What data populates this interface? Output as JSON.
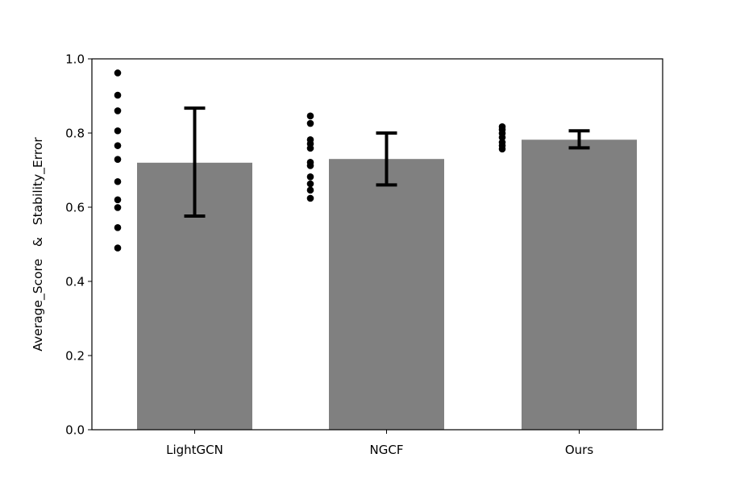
{
  "chart_data": {
    "type": "bar",
    "title": "",
    "xlabel": "",
    "ylabel": "Average_Score   &   Stability_Error",
    "ylim": [
      0,
      1.0
    ],
    "yticks": [
      0.0,
      0.2,
      0.4,
      0.6,
      0.8,
      1.0
    ],
    "ytick_labels": [
      "0.0",
      "0.2",
      "0.4",
      "0.6",
      "0.8",
      "1.0"
    ],
    "categories": [
      "LightGCN",
      "NGCF",
      "Ours"
    ],
    "values": [
      0.72,
      0.73,
      0.782
    ],
    "error_low": [
      0.576,
      0.66,
      0.76
    ],
    "error_high": [
      0.867,
      0.8,
      0.806
    ],
    "points": [
      [
        0.962,
        0.902,
        0.86,
        0.806,
        0.766,
        0.729,
        0.669,
        0.62,
        0.599,
        0.545,
        0.49
      ],
      [
        0.846,
        0.826,
        0.782,
        0.771,
        0.759,
        0.721,
        0.712,
        0.682,
        0.663,
        0.646,
        0.624
      ],
      [
        0.817,
        0.809,
        0.799,
        0.788,
        0.775,
        0.766,
        0.757
      ]
    ],
    "bar_color": "#808080",
    "point_color": "#000000",
    "error_color": "#000000",
    "grid": false,
    "legend": "none"
  }
}
